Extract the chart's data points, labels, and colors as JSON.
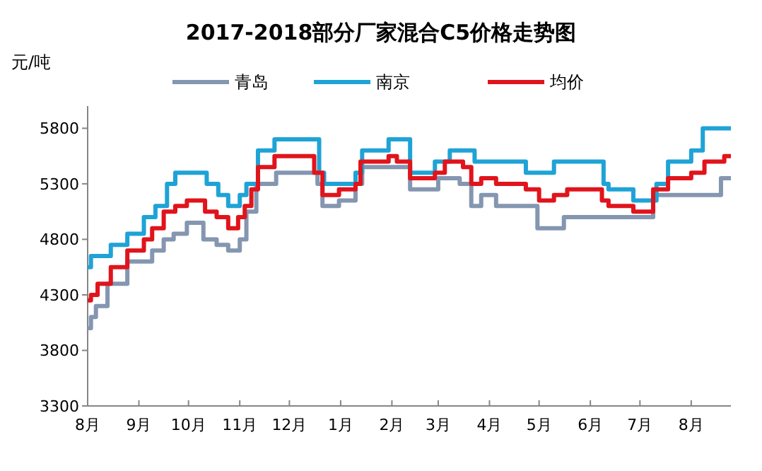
{
  "chart_data": {
    "type": "step",
    "title": "2017-2018部分厂家混合C5价格走势图",
    "ylabel": "元/吨",
    "legend": "top",
    "grid": false,
    "xlim": [
      "2017-08-01",
      "2018-08-25"
    ],
    "xticks": [
      {
        "value": "2017-08-01",
        "label": "8月"
      },
      {
        "value": "2017-09-01",
        "label": "9月"
      },
      {
        "value": "2017-10-01",
        "label": "10月"
      },
      {
        "value": "2017-11-01",
        "label": "11月"
      },
      {
        "value": "2017-12-01",
        "label": "12月"
      },
      {
        "value": "2018-01-01",
        "label": "1月"
      },
      {
        "value": "2018-02-01",
        "label": "2月"
      },
      {
        "value": "2018-03-01",
        "label": "3月"
      },
      {
        "value": "2018-04-01",
        "label": "4月"
      },
      {
        "value": "2018-05-01",
        "label": "5月"
      },
      {
        "value": "2018-06-01",
        "label": "6月"
      },
      {
        "value": "2018-07-01",
        "label": "7月"
      },
      {
        "value": "2018-08-01",
        "label": "8月"
      }
    ],
    "ylim": [
      3300,
      6000
    ],
    "yticks": [
      3300,
      3800,
      4300,
      4800,
      5300,
      5800
    ],
    "series": [
      {
        "name": "青岛",
        "color": "#8496b0",
        "x": [
          "2017-08-01",
          "2017-08-03",
          "2017-08-06",
          "2017-08-13",
          "2017-08-25",
          "2017-09-09",
          "2017-09-16",
          "2017-09-22",
          "2017-09-30",
          "2017-10-10",
          "2017-10-18",
          "2017-10-25",
          "2017-11-01",
          "2017-11-05",
          "2017-11-11",
          "2017-11-23",
          "2017-12-18",
          "2017-12-21",
          "2017-12-31",
          "2018-01-10",
          "2018-01-14",
          "2018-02-12",
          "2018-03-01",
          "2018-03-14",
          "2018-03-21",
          "2018-03-27",
          "2018-04-05",
          "2018-04-30",
          "2018-05-16",
          "2018-07-09",
          "2018-08-19",
          "2018-08-25"
        ],
        "values": [
          4000,
          4100,
          4200,
          4400,
          4600,
          4700,
          4800,
          4850,
          4950,
          4800,
          4750,
          4700,
          4800,
          5050,
          5300,
          5400,
          5300,
          5100,
          5150,
          5300,
          5450,
          5250,
          5350,
          5300,
          5100,
          5200,
          5100,
          4900,
          5000,
          5200,
          5350,
          5350
        ]
      },
      {
        "name": "南京",
        "color": "#1fa3d6",
        "x": [
          "2017-08-01",
          "2017-08-03",
          "2017-08-15",
          "2017-08-25",
          "2017-09-04",
          "2017-09-11",
          "2017-09-18",
          "2017-09-23",
          "2017-10-12",
          "2017-10-19",
          "2017-10-25",
          "2017-11-01",
          "2017-11-05",
          "2017-11-12",
          "2017-11-22",
          "2017-12-19",
          "2017-12-22",
          "2018-01-10",
          "2018-01-14",
          "2018-01-30",
          "2018-02-12",
          "2018-02-27",
          "2018-03-08",
          "2018-03-23",
          "2018-04-23",
          "2018-05-10",
          "2018-06-09",
          "2018-06-12",
          "2018-06-27",
          "2018-07-11",
          "2018-07-18",
          "2018-08-01",
          "2018-08-08",
          "2018-08-25"
        ],
        "values": [
          4550,
          4650,
          4750,
          4850,
          5000,
          5100,
          5300,
          5400,
          5300,
          5200,
          5100,
          5200,
          5300,
          5600,
          5700,
          5400,
          5300,
          5400,
          5600,
          5700,
          5400,
          5500,
          5600,
          5500,
          5400,
          5500,
          5300,
          5250,
          5150,
          5300,
          5500,
          5600,
          5800,
          5800
        ]
      },
      {
        "name": "均价",
        "color": "#e0141c",
        "x": [
          "2017-08-01",
          "2017-08-03",
          "2017-08-07",
          "2017-08-15",
          "2017-08-25",
          "2017-09-04",
          "2017-09-09",
          "2017-09-16",
          "2017-09-23",
          "2017-09-30",
          "2017-10-11",
          "2017-10-18",
          "2017-10-25",
          "2017-10-31",
          "2017-11-04",
          "2017-11-08",
          "2017-11-12",
          "2017-11-22",
          "2017-12-16",
          "2017-12-21",
          "2017-12-31",
          "2018-01-10",
          "2018-01-13",
          "2018-01-30",
          "2018-02-04",
          "2018-02-12",
          "2018-02-27",
          "2018-03-05",
          "2018-03-16",
          "2018-03-21",
          "2018-03-27",
          "2018-04-05",
          "2018-04-23",
          "2018-05-01",
          "2018-05-10",
          "2018-05-18",
          "2018-06-08",
          "2018-06-12",
          "2018-06-27",
          "2018-07-09",
          "2018-07-18",
          "2018-08-01",
          "2018-08-09",
          "2018-08-21",
          "2018-08-25"
        ],
        "values": [
          4250,
          4300,
          4400,
          4550,
          4700,
          4800,
          4900,
          5050,
          5100,
          5150,
          5050,
          5000,
          4900,
          5000,
          5100,
          5250,
          5450,
          5550,
          5400,
          5200,
          5250,
          5300,
          5500,
          5550,
          5500,
          5350,
          5400,
          5500,
          5450,
          5300,
          5350,
          5300,
          5250,
          5150,
          5200,
          5250,
          5150,
          5100,
          5050,
          5250,
          5350,
          5400,
          5500,
          5550,
          5550
        ]
      }
    ]
  }
}
